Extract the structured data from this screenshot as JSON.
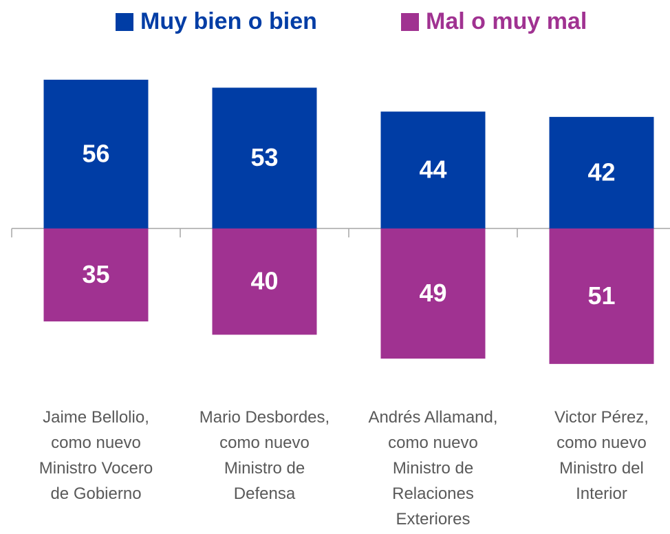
{
  "chart_data": {
    "type": "diverging-bar",
    "categories": [
      "Jaime Bellolio,\ncomo nuevo\nMinistro Vocero\nde Gobierno",
      "Mario Desbordes,\ncomo nuevo\nMinistro de\nDefensa",
      "Andrés Allamand,\ncomo nuevo\nMinistro de\nRelaciones\nExteriores",
      "Victor Pérez,\ncomo nuevo\nMinistro del\nInterior"
    ],
    "series": [
      {
        "name": "Muy bien o bien",
        "color": "#003da5",
        "values": [
          56,
          53,
          44,
          42
        ]
      },
      {
        "name": "Mal o muy mal",
        "color": "#a03291",
        "values": [
          35,
          40,
          49,
          51
        ]
      }
    ],
    "legend": "top"
  }
}
